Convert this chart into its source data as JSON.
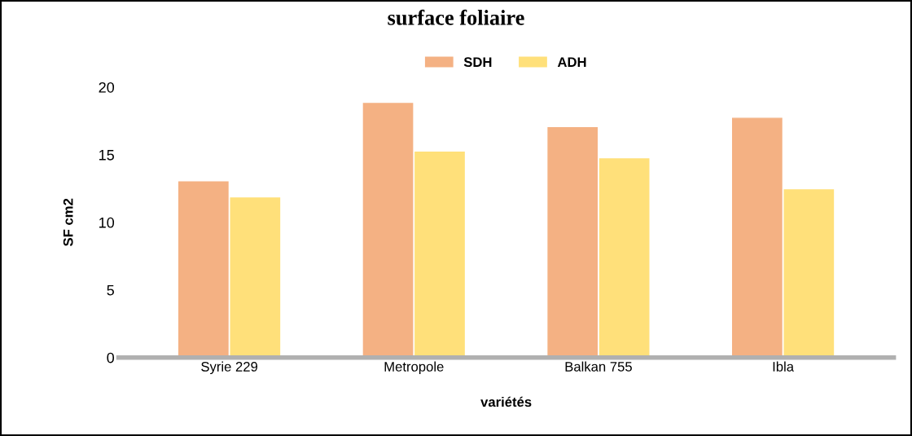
{
  "chart_data": {
    "type": "bar",
    "title": "surface foliaire",
    "xlabel": "variétés",
    "ylabel": "SF cm2",
    "categories": [
      "Syrie 229",
      "Metropole",
      "Balkan 755",
      "Ibla"
    ],
    "series": [
      {
        "name": "SDH",
        "color": "#f4b183",
        "values": [
          13.0,
          18.8,
          17.0,
          17.7
        ]
      },
      {
        "name": "ADH",
        "color": "#ffe07a",
        "values": [
          11.8,
          15.2,
          14.7,
          12.4
        ]
      }
    ],
    "ylim": [
      0,
      20
    ],
    "yticks": [
      0,
      5,
      10,
      15,
      20
    ],
    "grid": false,
    "legend": "top"
  }
}
